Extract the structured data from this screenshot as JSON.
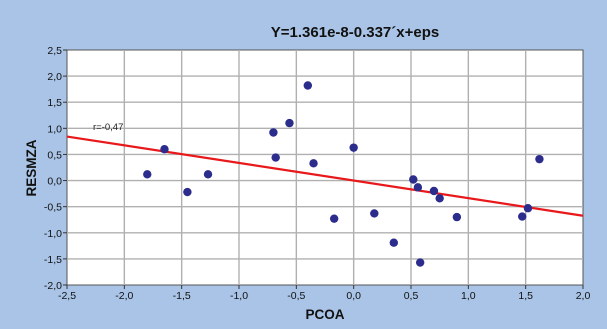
{
  "chart_data": {
    "type": "scatter",
    "title": "Y=1.361e-8-0.337´x+eps",
    "xlabel": "PCOA",
    "ylabel": "RESMZA",
    "xlim": [
      -2.5,
      2.0
    ],
    "ylim": [
      -2.0,
      2.5
    ],
    "xticks": [
      -2.5,
      -2.0,
      -1.5,
      -1.0,
      -0.5,
      0.0,
      0.5,
      1.0,
      1.5,
      2.0
    ],
    "yticks": [
      -2.0,
      -1.5,
      -1.0,
      -0.5,
      0.0,
      0.5,
      1.0,
      1.5,
      2.0,
      2.5
    ],
    "xtick_labels": [
      "-2,5",
      "-2,0",
      "-1,5",
      "-1,0",
      "-0,5",
      "0,0",
      "0,5",
      "1,0",
      "1,5",
      "2,0"
    ],
    "ytick_labels": [
      "-2,0",
      "-1,5",
      "-1,0",
      "-0,5",
      "0,0",
      "0,5",
      "1,0",
      "1,5",
      "2,0",
      "2,5"
    ],
    "grid": true,
    "points": [
      {
        "x": -1.8,
        "y": 0.12
      },
      {
        "x": -1.65,
        "y": 0.6
      },
      {
        "x": -1.45,
        "y": -0.22
      },
      {
        "x": -1.27,
        "y": 0.12
      },
      {
        "x": -0.7,
        "y": 0.92
      },
      {
        "x": -0.68,
        "y": 0.44
      },
      {
        "x": -0.56,
        "y": 1.1
      },
      {
        "x": -0.4,
        "y": 1.82
      },
      {
        "x": -0.35,
        "y": 0.33
      },
      {
        "x": -0.17,
        "y": -0.73
      },
      {
        "x": 0.0,
        "y": 0.63
      },
      {
        "x": 0.18,
        "y": -0.63
      },
      {
        "x": 0.35,
        "y": -1.19
      },
      {
        "x": 0.52,
        "y": 0.02
      },
      {
        "x": 0.56,
        "y": -0.13
      },
      {
        "x": 0.58,
        "y": -1.57
      },
      {
        "x": 0.7,
        "y": -0.2
      },
      {
        "x": 0.75,
        "y": -0.34
      },
      {
        "x": 0.9,
        "y": -0.7
      },
      {
        "x": 1.47,
        "y": -0.69
      },
      {
        "x": 1.52,
        "y": -0.53
      },
      {
        "x": 1.62,
        "y": 0.41
      }
    ],
    "fit_line": {
      "intercept": 1.361e-08,
      "slope": -0.337
    },
    "annotation": "r=-0,47",
    "colors": {
      "background": "#a9c4e6",
      "plot_background": "#ffffff",
      "grid": "#b0b0b0",
      "points": "#2b2c8c",
      "fit_line": "#e8181b"
    }
  }
}
